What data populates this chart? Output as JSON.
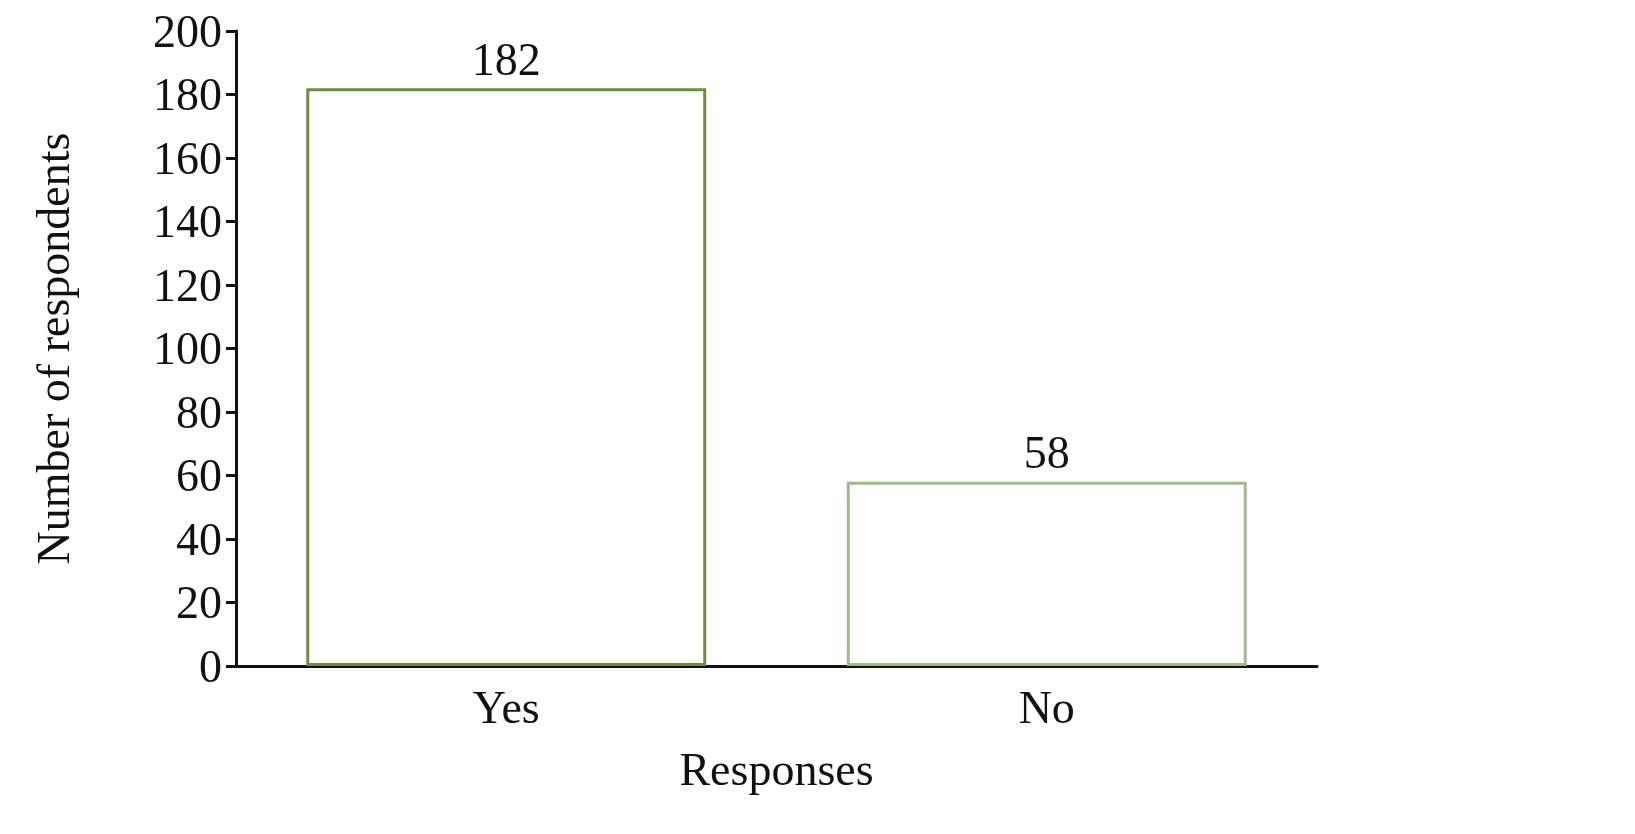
{
  "chart_data": {
    "type": "bar",
    "xlabel": "Responses",
    "ylabel": "Number of respondents",
    "categories": [
      "Yes",
      "No"
    ],
    "values": [
      182,
      58
    ],
    "colors": [
      "#6b8f3e",
      "#9cbc86"
    ],
    "ylim": [
      0,
      200
    ],
    "yticks": [
      0,
      20,
      40,
      60,
      80,
      100,
      120,
      140,
      160,
      180,
      200
    ],
    "data_labels": true,
    "grid": false
  }
}
